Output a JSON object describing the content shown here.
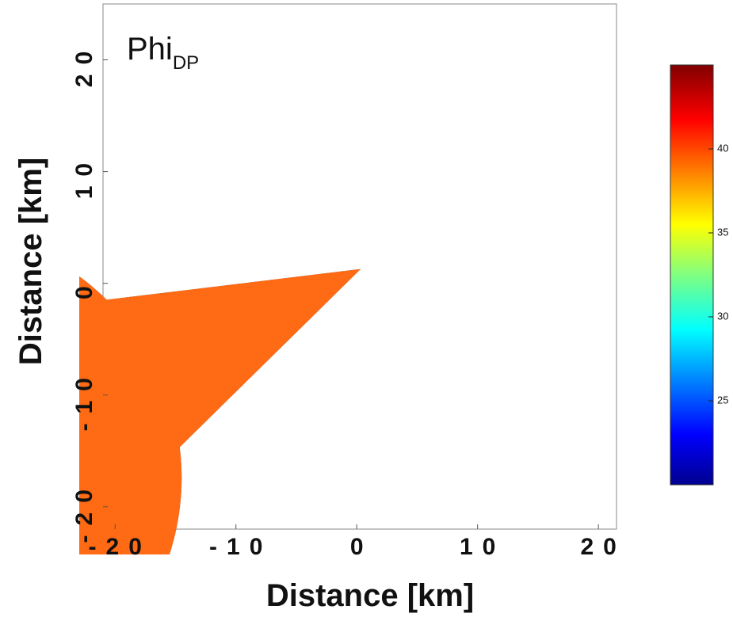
{
  "chart_data": {
    "type": "ppi",
    "title": "Phi",
    "title_subscript": "DP",
    "x_label": "Distance [km]",
    "y_label": "Distance [km]",
    "xlim": [
      -21,
      21.5
    ],
    "ylim": [
      -22,
      25
    ],
    "xticks": [
      -20,
      -10,
      0,
      10,
      20
    ],
    "yticks": [
      -20,
      -10,
      0,
      10,
      20
    ],
    "near_color": "#ff6a14",
    "colorbar": {
      "colormap": "jet",
      "clim": [
        20,
        45
      ],
      "ticks": [
        25,
        30,
        35,
        40
      ]
    }
  }
}
